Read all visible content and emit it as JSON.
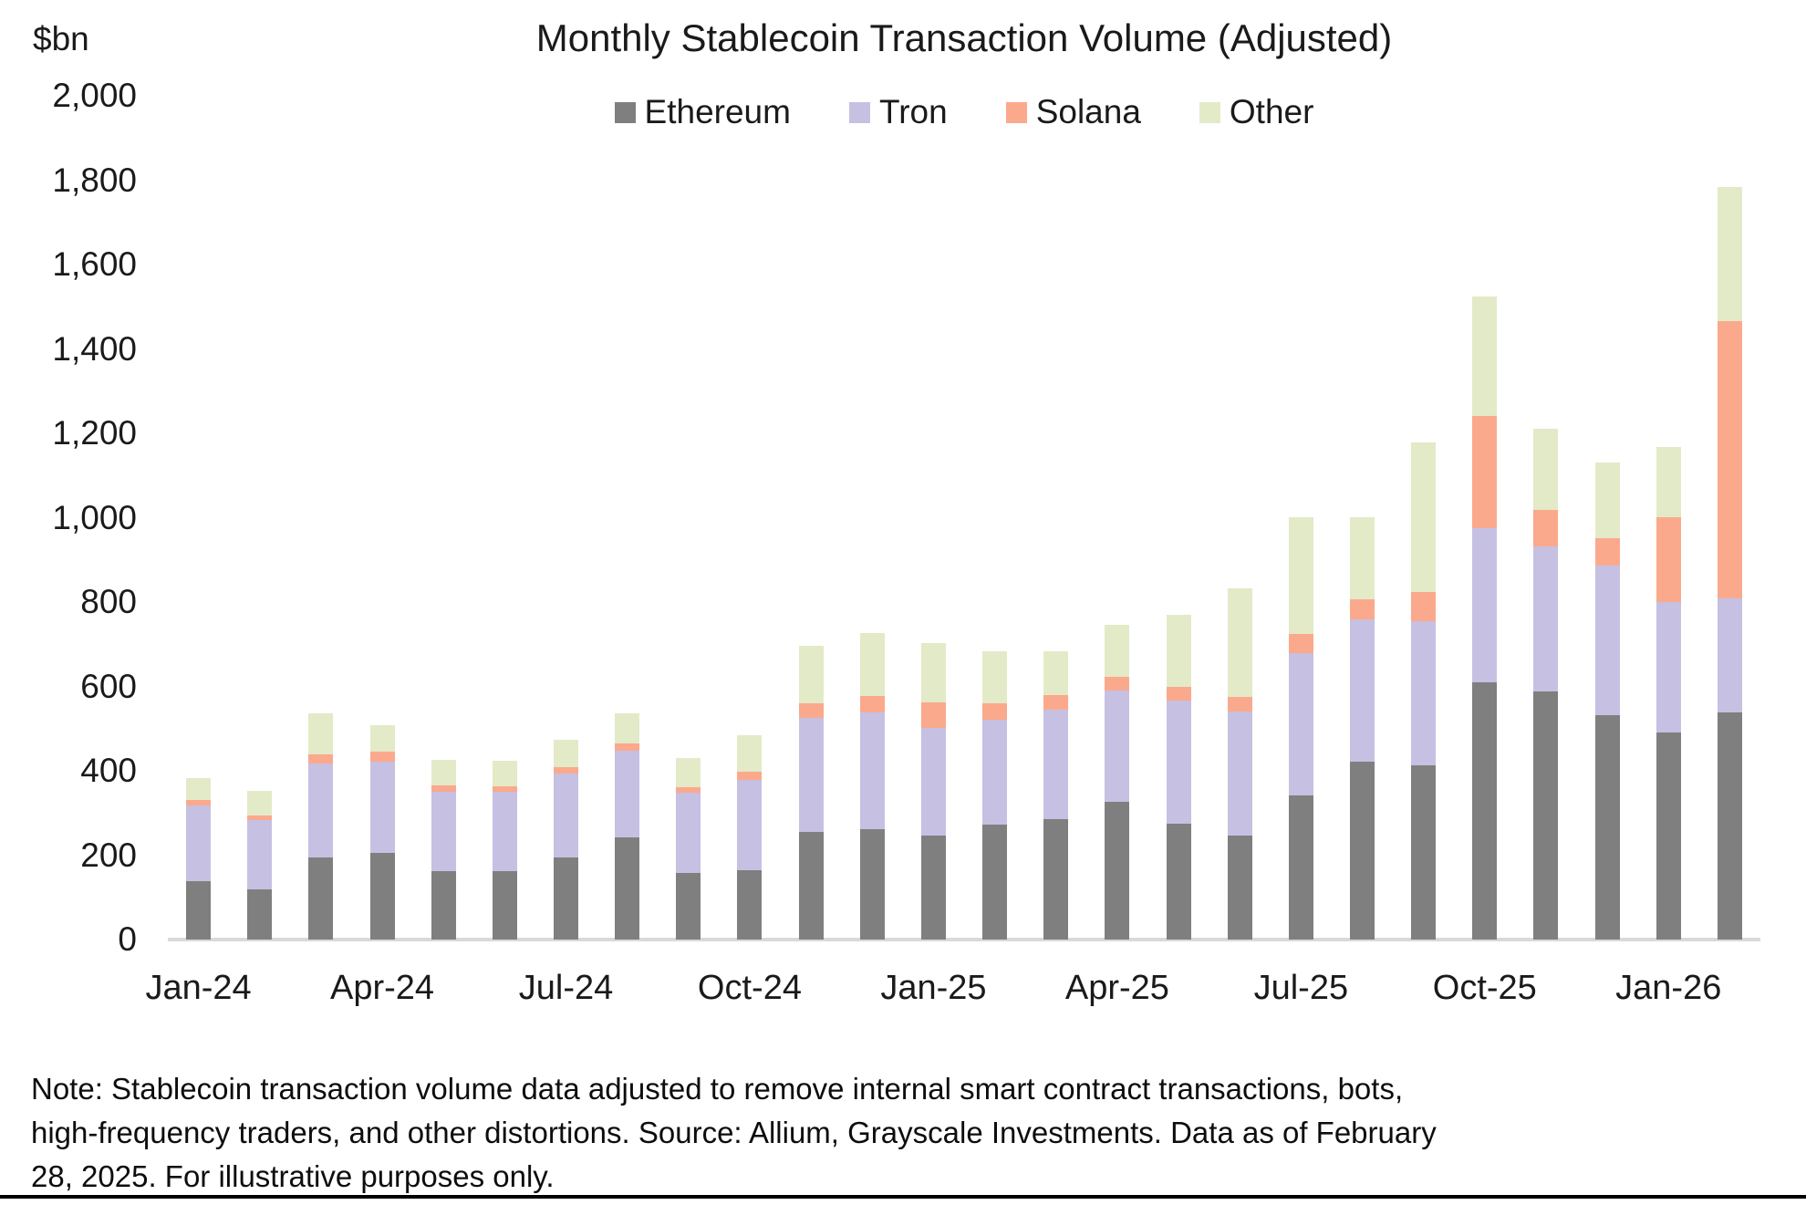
{
  "chart_data": {
    "type": "bar",
    "stacked": true,
    "title": "Monthly Stablecoin Transaction Volume (Adjusted)",
    "unit_label": "$bn",
    "legend_position": "top",
    "grid": false,
    "axis_line_color": "#d9d9d9",
    "ylim": [
      0,
      2000
    ],
    "y_ticks": [
      "0",
      "200",
      "400",
      "600",
      "800",
      "1,000",
      "1,200",
      "1,400",
      "1,600",
      "1,800",
      "2,000"
    ],
    "x_label_every": 3,
    "categories": [
      "Jan-24",
      "Feb-24",
      "Mar-24",
      "Apr-24",
      "May-24",
      "Jun-24",
      "Jul-24",
      "Aug-24",
      "Sep-24",
      "Oct-24",
      "Nov-24",
      "Dec-24",
      "Jan-25",
      "Feb-25",
      "Mar-25",
      "Apr-25",
      "May-25",
      "Jun-25",
      "Jul-25",
      "Aug-25",
      "Sep-25",
      "Oct-25",
      "Nov-25",
      "Dec-25",
      "Jan-26",
      "Feb-26"
    ],
    "series": [
      {
        "name": "Ethereum",
        "color": "#7f7f7f",
        "values": [
          138,
          120,
          195,
          205,
          162,
          162,
          195,
          242,
          158,
          164,
          255,
          262,
          246,
          272,
          285,
          326,
          275,
          246,
          342,
          422,
          413,
          610,
          588,
          532,
          491,
          538
        ]
      },
      {
        "name": "Tron",
        "color": "#c6c0e2",
        "values": [
          180,
          163,
          222,
          217,
          188,
          188,
          198,
          206,
          190,
          214,
          270,
          276,
          256,
          249,
          260,
          264,
          291,
          294,
          337,
          337,
          342,
          365,
          344,
          354,
          309,
          271
        ]
      },
      {
        "name": "Solana",
        "color": "#fba98c",
        "values": [
          13,
          12,
          22,
          23,
          15,
          13,
          16,
          17,
          13,
          20,
          35,
          39,
          60,
          39,
          34,
          33,
          33,
          35,
          45,
          47,
          69,
          266,
          86,
          65,
          201,
          657
        ]
      },
      {
        "name": "Other",
        "color": "#e3eac8",
        "values": [
          52,
          57,
          97,
          63,
          61,
          61,
          65,
          71,
          69,
          86,
          136,
          149,
          141,
          123,
          104,
          123,
          171,
          257,
          277,
          195,
          354,
          283,
          193,
          180,
          167,
          318
        ]
      }
    ],
    "totals": [
      383,
      352,
      536,
      508,
      426,
      424,
      474,
      536,
      430,
      484,
      696,
      726,
      703,
      683,
      683,
      746,
      770,
      832,
      1001,
      1001,
      1178,
      1524,
      1211,
      1131,
      1168,
      1784
    ]
  },
  "note": {
    "lines": [
      "Note: Stablecoin transaction volume data adjusted to remove internal smart contract transactions, bots,",
      "high-frequency traders, and other distortions. Source: Allium, Grayscale Investments. Data as of February",
      "28, 2025. For illustrative purposes only."
    ]
  }
}
